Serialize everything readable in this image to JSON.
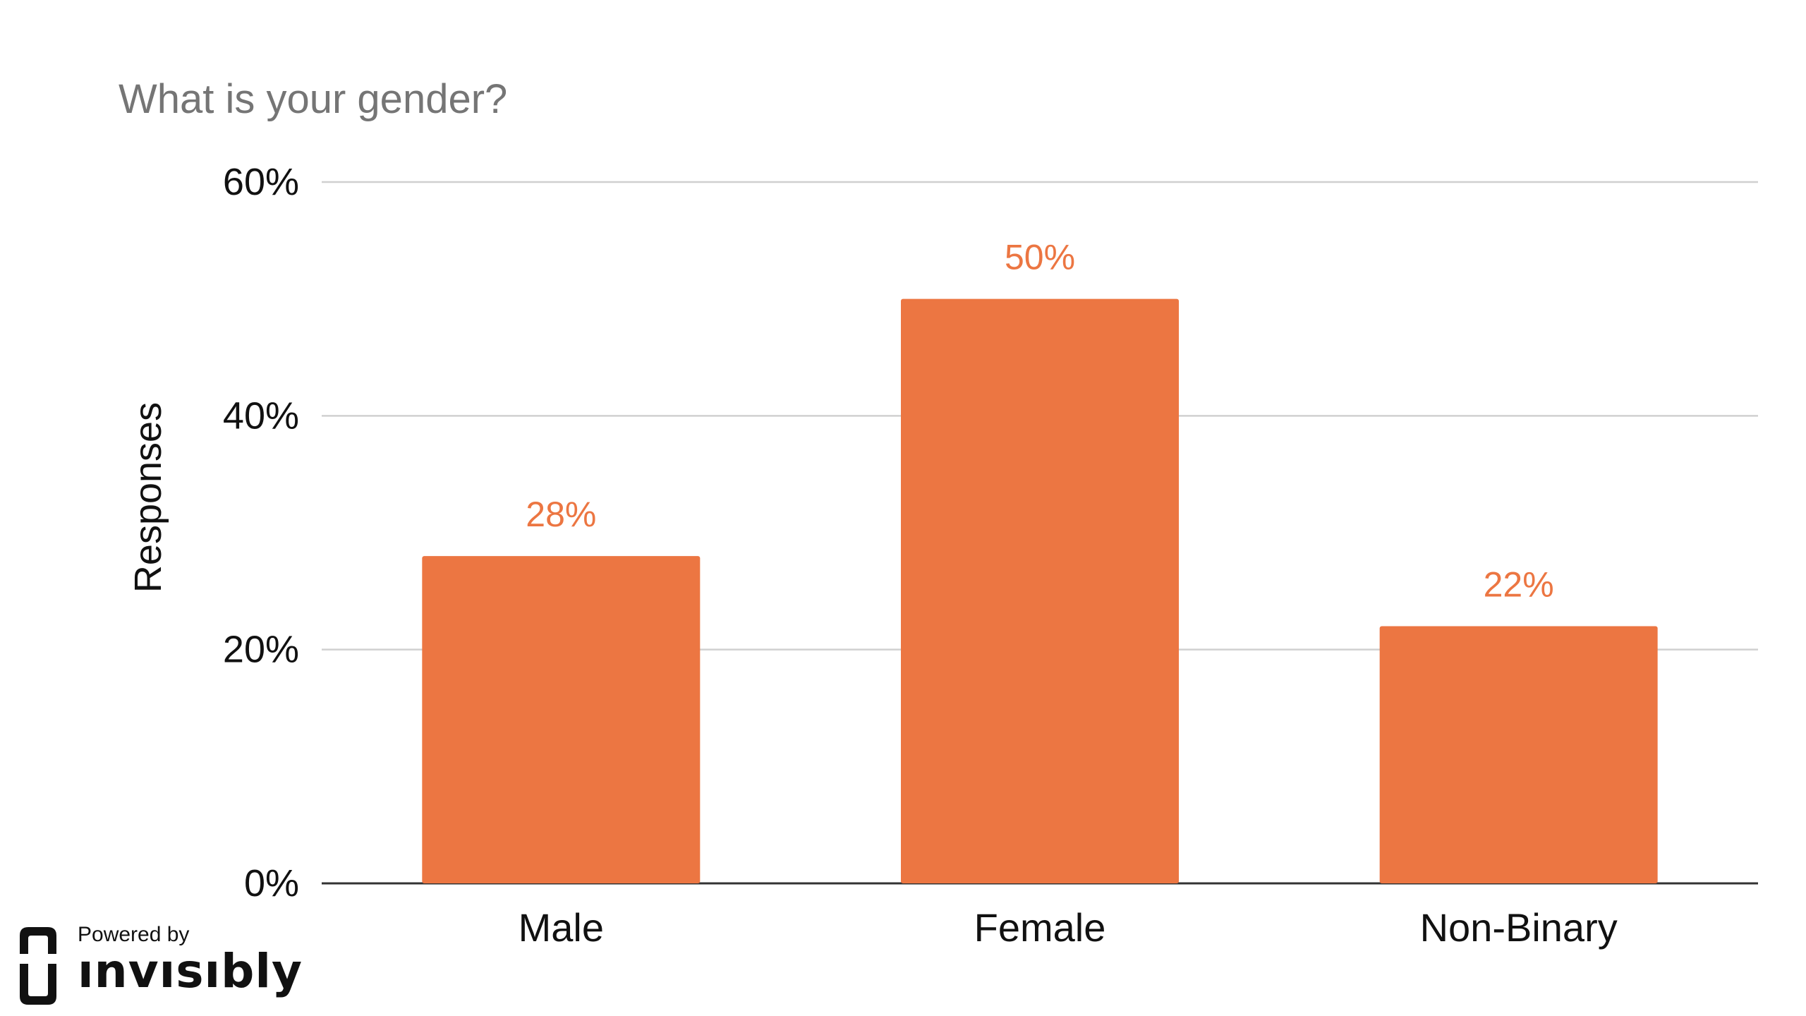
{
  "chart_data": {
    "type": "bar",
    "title": "What is your gender?",
    "ylabel": "Responses",
    "xlabel": "",
    "categories": [
      "Male",
      "Female",
      "Non-Binary"
    ],
    "values": [
      28,
      50,
      22
    ],
    "data_labels": [
      "28%",
      "50%",
      "22%"
    ],
    "ylim": [
      0,
      60
    ],
    "yticks": [
      0,
      20,
      40,
      60
    ],
    "ytick_labels": [
      "0%",
      "20%",
      "40%",
      "60%"
    ],
    "grid": true,
    "legend": "none",
    "colors": {
      "bar": "#EC7642",
      "data_label": "#EC7642",
      "title": "#757575",
      "gridline": "#D0D0D0",
      "baseline": "#333333",
      "axis_text": "#111111"
    }
  },
  "branding": {
    "powered_by": "Powered by",
    "name": "ınvısıbly",
    "icon": "invisibly-logo-icon"
  }
}
